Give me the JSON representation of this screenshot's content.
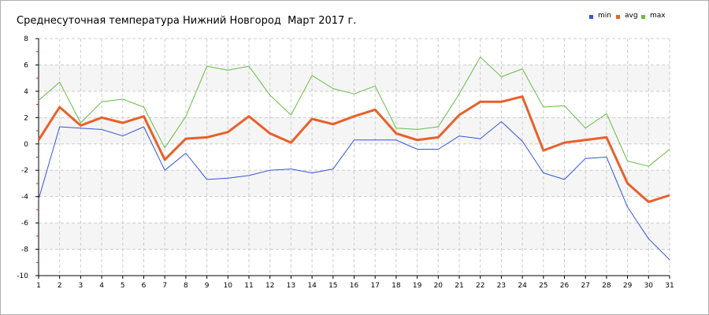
{
  "chart_data": {
    "type": "line",
    "title": "Среднесуточная температура Нижний Новгород  Март 2017 г.",
    "xlabel": "",
    "ylabel": "",
    "categories": [
      "1",
      "2",
      "3",
      "4",
      "5",
      "6",
      "7",
      "8",
      "9",
      "10",
      "11",
      "12",
      "13",
      "14",
      "15",
      "16",
      "17",
      "18",
      "19",
      "20",
      "21",
      "22",
      "23",
      "24",
      "25",
      "26",
      "27",
      "28",
      "29",
      "30",
      "31"
    ],
    "ylim": [
      -10,
      8
    ],
    "yticks": [
      "8",
      "6",
      "4",
      "2",
      "0",
      "-2",
      "-4",
      "-6",
      "-8",
      "-10"
    ],
    "grid": true,
    "legend_position": "top-right",
    "series": [
      {
        "name": "min",
        "color": "#3355dd",
        "values": [
          -4.2,
          1.3,
          1.2,
          1.1,
          0.6,
          1.3,
          -2.0,
          -0.7,
          -2.7,
          -2.6,
          -2.4,
          -2.0,
          -1.9,
          -2.2,
          -1.9,
          0.3,
          0.3,
          0.3,
          -0.4,
          -0.4,
          0.6,
          0.4,
          1.7,
          0.2,
          -2.2,
          -2.7,
          -1.1,
          -1.0,
          -4.8,
          -7.2,
          -8.8
        ]
      },
      {
        "name": "avg",
        "color": "#e8602a",
        "values": [
          0.3,
          2.8,
          1.4,
          2.0,
          1.6,
          2.1,
          -1.2,
          0.4,
          0.5,
          0.9,
          2.1,
          0.8,
          0.1,
          1.9,
          1.5,
          2.1,
          2.6,
          0.8,
          0.3,
          0.5,
          2.2,
          3.2,
          3.2,
          3.6,
          -0.5,
          0.1,
          0.3,
          0.5,
          -3.0,
          -4.4,
          -3.9
        ]
      },
      {
        "name": "max",
        "color": "#66bb44",
        "values": [
          3.3,
          4.7,
          1.6,
          3.2,
          3.4,
          2.8,
          -0.3,
          2.1,
          5.9,
          5.6,
          5.9,
          3.7,
          2.2,
          5.2,
          4.2,
          3.8,
          4.4,
          1.2,
          1.1,
          1.3,
          3.8,
          6.6,
          5.1,
          5.7,
          2.8,
          2.9,
          1.2,
          2.3,
          -1.3,
          -1.7,
          -0.4
        ]
      }
    ]
  }
}
